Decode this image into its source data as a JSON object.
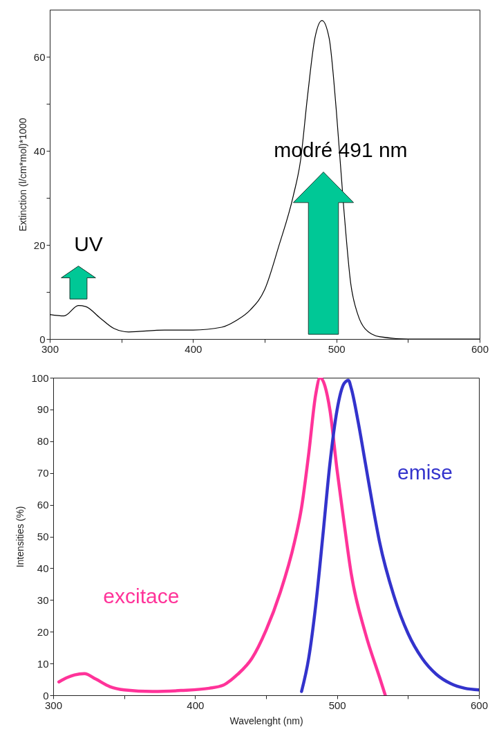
{
  "chart_data": [
    {
      "type": "line",
      "ylabel": "Extinction (l/cm*mol)*1000",
      "xlim": [
        300,
        600
      ],
      "xticks": [
        300,
        {
          "value": 350,
          "label": null
        },
        400,
        {
          "value": 450,
          "label": null
        },
        500,
        {
          "value": 550,
          "label": null
        },
        600
      ],
      "ylim": [
        0,
        70
      ],
      "yticks": [
        0,
        {
          "value": 10,
          "label": null
        },
        20,
        {
          "value": 30,
          "label": null
        },
        40,
        {
          "value": 50,
          "label": null
        },
        60
      ],
      "series": [
        {
          "color": "#000000",
          "x": [
            300,
            310,
            320,
            325,
            335,
            345,
            355,
            380,
            400,
            420,
            430,
            440,
            450,
            460,
            470,
            475,
            480,
            485,
            490,
            495,
            500,
            505,
            510,
            515,
            520,
            530,
            550,
            600
          ],
          "values": [
            5.2,
            4.9,
            7.1,
            6.9,
            4.5,
            2.2,
            1.5,
            1.9,
            1.9,
            2.5,
            3.9,
            6.2,
            10.5,
            19.9,
            30.5,
            37.9,
            51.9,
            63.9,
            67.7,
            63.9,
            48.5,
            28.5,
            11.9,
            5.2,
            2.2,
            0.5,
            0,
            0
          ]
        }
      ],
      "annotations": [
        "UV",
        "modré 491 nm"
      ]
    },
    {
      "type": "line",
      "xlabel": "Wavelenght (nm)",
      "ylabel": "Intensities (%)",
      "xlim": [
        300,
        600
      ],
      "xticks": [
        300,
        {
          "value": 350,
          "label": null
        },
        400,
        {
          "value": 450,
          "label": null
        },
        500,
        {
          "value": 550,
          "label": null
        },
        600
      ],
      "ylim": [
        0,
        100
      ],
      "yticks": [
        0,
        10,
        20,
        30,
        40,
        50,
        60,
        70,
        80,
        90,
        100
      ],
      "series": [
        {
          "name": "excitace",
          "color": "#ff3399",
          "x": [
            304,
            310,
            315,
            322,
            330,
            340,
            350,
            370,
            390,
            410,
            420,
            425,
            430,
            440,
            450,
            460,
            470,
            475,
            480,
            485,
            488,
            495,
            500,
            505,
            510,
            520,
            530,
            534
          ],
          "values": [
            4.2,
            5.6,
            6.4,
            6.8,
            5.1,
            2.7,
            1.7,
            1.2,
            1.5,
            2.2,
            3.2,
            4.7,
            6.6,
            11.6,
            20.5,
            32.4,
            48.2,
            59.1,
            75.9,
            94.8,
            100,
            89.8,
            71,
            54.2,
            38.3,
            19.5,
            5.6,
            0
          ]
        },
        {
          "name": "emise",
          "color": "#3333cc",
          "x": [
            475,
            480,
            485,
            490,
            495,
            500,
            505,
            508,
            510,
            515,
            520,
            525,
            530,
            540,
            550,
            560,
            570,
            580,
            590,
            600
          ],
          "values": [
            1.2,
            11.6,
            28.4,
            50.2,
            73,
            89.8,
            98.2,
            99.2,
            96.7,
            85.8,
            73,
            60.1,
            48.2,
            31.4,
            19.5,
            11.6,
            6.6,
            3.7,
            2.2,
            1.7
          ]
        }
      ]
    }
  ]
}
